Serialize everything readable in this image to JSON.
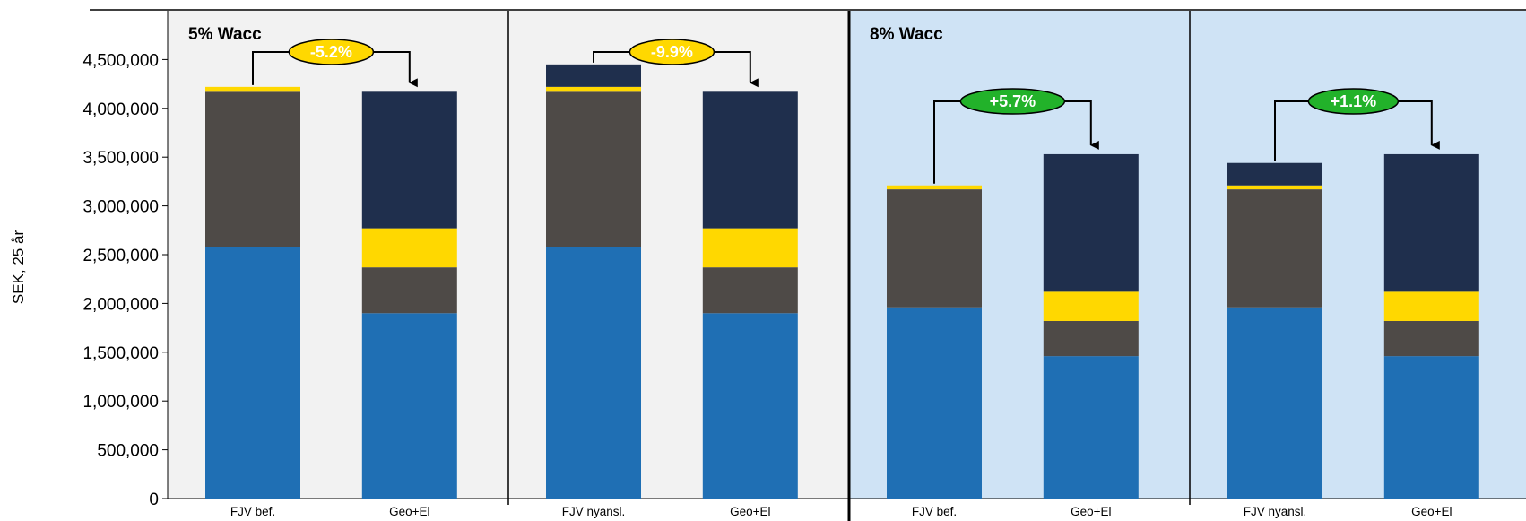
{
  "chart_data": {
    "type": "bar",
    "stacked": true,
    "ylabel": "SEK, 25 år",
    "ylim": [
      0,
      5000000
    ],
    "yticks": [
      "0",
      "500,000",
      "1,000,000",
      "1,500,000",
      "2,000,000",
      "2,500,000",
      "3,000,000",
      "3,500,000",
      "4,000,000",
      "4,500,000"
    ],
    "ytick_values": [
      0,
      500000,
      1000000,
      1500000,
      2000000,
      2500000,
      3000000,
      3500000,
      4000000,
      4500000
    ],
    "grid": false,
    "legend": "none",
    "series_colors": [
      "#1f6fb4",
      "#4e4a47",
      "#ffd800",
      "#1f2f4d"
    ],
    "groups": [
      {
        "title": "5% Wacc",
        "background": "#f2f2f2",
        "panels": [
          {
            "categories": [
              "FJV bef.",
              "Geo+El"
            ],
            "stacks": [
              [
                2580000,
                1590000,
                50000,
                0
              ],
              [
                1900000,
                470000,
                400000,
                1400000
              ]
            ],
            "change_label": "-5.2%",
            "change_color": "#ffd800"
          },
          {
            "categories": [
              "FJV nyansl.",
              "Geo+El"
            ],
            "stacks": [
              [
                2580000,
                1590000,
                50000,
                230000
              ],
              [
                1900000,
                470000,
                400000,
                1400000
              ]
            ],
            "change_label": "-9.9%",
            "change_color": "#ffd800"
          }
        ]
      },
      {
        "title": "8% Wacc",
        "background": "#cfe3f5",
        "panels": [
          {
            "categories": [
              "FJV bef.",
              "Geo+El"
            ],
            "stacks": [
              [
                1960000,
                1210000,
                40000,
                0
              ],
              [
                1460000,
                360000,
                300000,
                1410000
              ]
            ],
            "change_label": "+5.7%",
            "change_color": "#22b22a"
          },
          {
            "categories": [
              "FJV nyansl.",
              "Geo+El"
            ],
            "stacks": [
              [
                1960000,
                1210000,
                40000,
                230000
              ],
              [
                1460000,
                360000,
                300000,
                1410000
              ]
            ],
            "change_label": "+1.1%",
            "change_color": "#22b22a"
          }
        ]
      }
    ]
  }
}
